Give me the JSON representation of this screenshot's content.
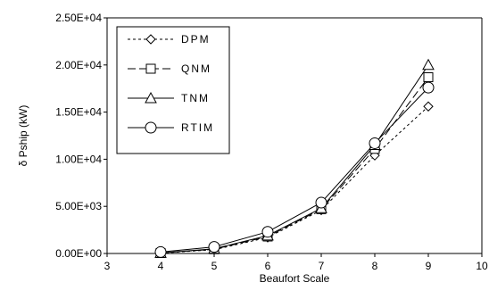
{
  "chart_data": {
    "type": "line",
    "title": "",
    "xlabel": "Beaufort Scale",
    "ylabel": "δ Pship (kW)",
    "xlim": [
      3,
      10
    ],
    "ylim": [
      0,
      25000
    ],
    "x_ticks": [
      3,
      4,
      5,
      6,
      7,
      8,
      9,
      10
    ],
    "y_ticks": [
      0,
      5000,
      10000,
      15000,
      20000,
      25000
    ],
    "x_tick_labels": [
      "3",
      "4",
      "5",
      "6",
      "7",
      "8",
      "9",
      "10"
    ],
    "y_tick_labels": [
      "0.00E+00",
      "5.00E+03",
      "1.00E+04",
      "1.50E+04",
      "2.00E+04",
      "2.50E+04"
    ],
    "grid": false,
    "legend_position": "top-left",
    "series": [
      {
        "name": "DPM",
        "marker": "diamond",
        "dash": "3,3",
        "x": [
          4,
          5,
          6,
          7,
          8,
          9
        ],
        "y": [
          40,
          400,
          1700,
          4600,
          10400,
          15600
        ]
      },
      {
        "name": "QNM",
        "marker": "square",
        "dash": "9,4",
        "x": [
          4,
          5,
          6,
          7,
          8,
          9
        ],
        "y": [
          50,
          450,
          1800,
          4700,
          11100,
          18700
        ]
      },
      {
        "name": "TNM",
        "marker": "triangle",
        "dash": "",
        "x": [
          4,
          5,
          6,
          7,
          8,
          9
        ],
        "y": [
          60,
          500,
          1900,
          4800,
          11500,
          20000
        ]
      },
      {
        "name": "RTIM",
        "marker": "circle",
        "dash": "",
        "x": [
          4,
          5,
          6,
          7,
          8,
          9
        ],
        "y": [
          150,
          700,
          2300,
          5400,
          11700,
          17600
        ]
      }
    ]
  }
}
